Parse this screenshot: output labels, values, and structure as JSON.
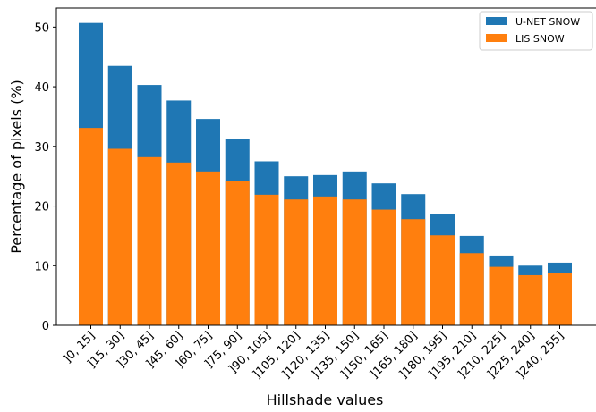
{
  "chart_data": {
    "type": "bar",
    "title": "",
    "xlabel": "Hillshade values",
    "ylabel": "Percentage of pixels (%)",
    "ylim": [
      0,
      53.2
    ],
    "yticks": [
      0,
      10,
      20,
      30,
      40,
      50
    ],
    "grid": false,
    "legend_position": "top-right",
    "categories": [
      "]0, 15]",
      "]15, 30]",
      "]30, 45]",
      "]45, 60]",
      "]60, 75]",
      "]75, 90]",
      "]90, 105]",
      "]105, 120]",
      "]120, 135]",
      "]135, 150]",
      "]150, 165]",
      "]165, 180]",
      "]180, 195]",
      "]195, 210]",
      "]210, 225]",
      "]225, 240]",
      "]240, 255]"
    ],
    "series": [
      {
        "name": "U-NET SNOW",
        "color": "#1f77b4",
        "values": [
          50.7,
          43.5,
          40.3,
          37.7,
          34.6,
          31.3,
          27.5,
          25.0,
          25.2,
          25.8,
          23.8,
          22.0,
          18.7,
          15.0,
          11.7,
          10.0,
          10.5
        ]
      },
      {
        "name": "LIS SNOW",
        "color": "#ff7f0e",
        "values": [
          33.1,
          29.6,
          28.2,
          27.3,
          25.8,
          24.2,
          21.9,
          21.1,
          21.6,
          21.1,
          19.4,
          17.8,
          15.1,
          12.1,
          9.8,
          8.4,
          8.7
        ]
      }
    ]
  }
}
